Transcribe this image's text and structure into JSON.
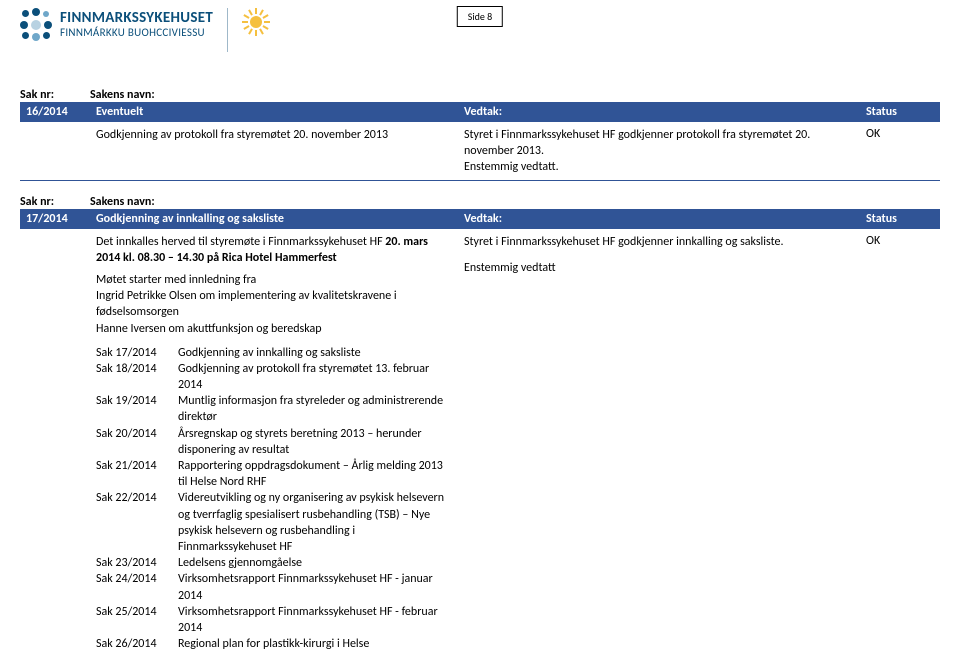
{
  "page_label": "Side 8",
  "logo": {
    "line1": "FINNMARKSSYKEHUSET",
    "line2": "FINNMÁRKKU BUOHCCIVIESSU",
    "dot_colors": [
      "#0b4f7a",
      "#0b4f7a",
      "#6fa7c9",
      "#0b4f7a",
      "#b8d2e2",
      "#0b4f7a",
      "#0b4f7a",
      "#6fa7c9",
      "#0b4f7a"
    ]
  },
  "labels": {
    "sak_nr": "Sak nr:",
    "sakens_navn": "Sakens navn:"
  },
  "row1": {
    "band": {
      "nr": "16/2014",
      "title": "Eventuelt",
      "col3": "Vedtak:",
      "col4": "Status"
    },
    "body": {
      "left_text": "Godkjenning av protokoll fra styremøtet 20. november 2013",
      "right_text": "Styret i Finnmarkssykehuset HF godkjenner protokoll fra styremøtet 20. november 2013.",
      "right_text_2": "Enstemmig vedtatt.",
      "status": "OK"
    }
  },
  "row2": {
    "band": {
      "nr": "17/2014",
      "title": "Godkjenning av innkalling og saksliste",
      "col3": "Vedtak:",
      "col4": "Status"
    },
    "body": {
      "heading_pre": "Det innkalles herved til styremøte i Finnmarkssykehuset HF ",
      "heading_bold": "20. mars 2014 kl. 08.30 – 14.30 på Rica Hotel Hammerfest",
      "intro1": "Møtet starter med innledning fra",
      "intro2": "Ingrid Petrikke Olsen om implementering av kvalitetskravene i fødselsomsorgen",
      "intro3": "Hanne Iversen om akuttfunksjon og beredskap",
      "right_text": "Styret i Finnmarkssykehuset HF godkjenner innkalling og saksliste.",
      "right_text_2": "Enstemmig vedtatt",
      "status": "OK",
      "sak_items": [
        {
          "k": "Sak 17/2014",
          "d": "Godkjenning av innkalling og saksliste"
        },
        {
          "k": "Sak 18/2014",
          "d": "Godkjenning av protokoll fra styremøtet 13. februar 2014"
        },
        {
          "k": "Sak 19/2014",
          "d": "Muntlig informasjon fra styreleder og administrerende direktør"
        },
        {
          "k": "Sak 20/2014",
          "d": "Årsregnskap og styrets beretning 2013 – herunder disponering av resultat"
        },
        {
          "k": "Sak 21/2014",
          "d": "Rapportering oppdragsdokument – Årlig melding 2013 til Helse Nord RHF"
        },
        {
          "k": "Sak 22/2014",
          "d": "Videreutvikling og ny organisering av psykisk helsevern og tverrfaglig spesialisert rusbehandling (TSB) – Nye psykisk helsevern og rusbehandling i Finnmarkssykehuset HF"
        },
        {
          "k": "Sak 23/2014",
          "d": "Ledelsens gjennomgåelse"
        },
        {
          "k": "Sak 24/2014",
          "d": "Virksomhetsrapport Finnmarkssykehuset HF - januar 2014"
        },
        {
          "k": "Sak 25/2014",
          "d": "Virksomhetsrapport Finnmarkssykehuset HF - februar 2014"
        },
        {
          "k": "Sak 26/2014",
          "d": "Regional plan for plastikk-kirurgi i Helse"
        }
      ]
    }
  }
}
